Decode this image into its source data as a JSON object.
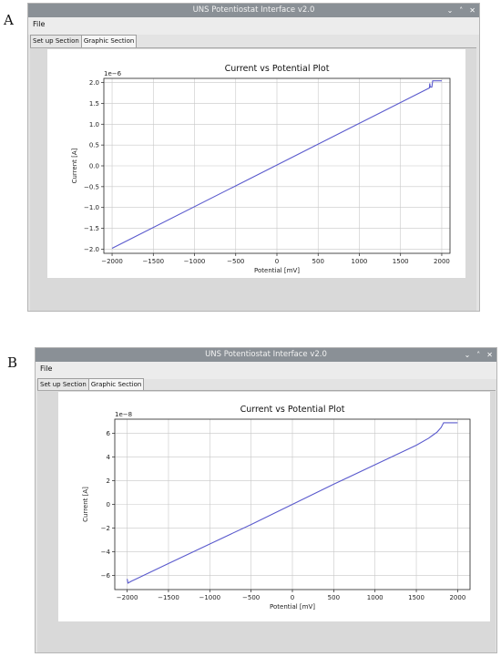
{
  "labels": {
    "a": "A",
    "b": "B"
  },
  "windows": [
    {
      "id": "a",
      "title": "UNS Potentiostat Interface v2.0",
      "controls": [
        "⌄",
        "˄",
        "✕"
      ],
      "menu": [
        "File"
      ],
      "tabs": [
        "Set up Section",
        "Graphic Section"
      ],
      "active_tab": 1
    },
    {
      "id": "b",
      "title": "UNS Potentiostat Interface v2.0",
      "controls": [
        "⌄",
        "˄",
        "✕"
      ],
      "menu": [
        "File"
      ],
      "tabs": [
        "Set up Section",
        "Graphic Section"
      ],
      "active_tab": 1
    }
  ],
  "chart_data": [
    {
      "type": "line",
      "title": "Current vs Potential Plot",
      "xlabel": "Potential [mV]",
      "ylabel": "Current [A]",
      "offset_label": "1e−6",
      "xlim": [
        -2100,
        2100
      ],
      "ylim": [
        -2.1,
        2.1
      ],
      "x_ticks": [
        -2000,
        -1500,
        -1000,
        -500,
        0,
        500,
        1000,
        1500,
        2000
      ],
      "y_ticks": [
        -2.0,
        -1.5,
        -1.0,
        -0.5,
        0.0,
        0.5,
        1.0,
        1.5,
        2.0
      ],
      "x_tick_labels": [
        "−2000",
        "−1500",
        "−1000",
        "−500",
        "0",
        "500",
        "1000",
        "1500",
        "2000"
      ],
      "y_tick_labels": [
        "−2.0",
        "−1.5",
        "−1.0",
        "−0.5",
        "0.0",
        "0.5",
        "1.0",
        "1.5",
        "2.0"
      ],
      "grid": true,
      "line_color": "#5a5acd",
      "series": [
        {
          "x": [
            -2000,
            1850,
            1855,
            1860,
            1870,
            1880,
            1890,
            1900,
            1920,
            1940,
            1960,
            1980,
            2000
          ],
          "y": [
            -1.98,
            1.87,
            1.98,
            1.89,
            1.89,
            1.89,
            2.04,
            2.04,
            2.04,
            2.04,
            2.04,
            2.04,
            2.04
          ]
        }
      ]
    },
    {
      "type": "line",
      "title": "Current vs Potential Plot",
      "xlabel": "Potential [mV]",
      "ylabel": "Current [A]",
      "offset_label": "1e−8",
      "xlim": [
        -2150,
        2150
      ],
      "ylim": [
        -7.2,
        7.2
      ],
      "x_ticks": [
        -2000,
        -1500,
        -1000,
        -500,
        0,
        500,
        1000,
        1500,
        2000
      ],
      "y_ticks": [
        -6,
        -4,
        -2,
        0,
        2,
        4,
        6
      ],
      "x_tick_labels": [
        "−2000",
        "−1500",
        "−1000",
        "−500",
        "0",
        "500",
        "1000",
        "1500",
        "2000"
      ],
      "y_tick_labels": [
        "−6",
        "−4",
        "−2",
        "0",
        "2",
        "4",
        "6"
      ],
      "grid": true,
      "line_color": "#5a5acd",
      "series": [
        {
          "x": [
            -2000,
            -1990,
            -1950,
            -1500,
            -1000,
            -500,
            0,
            500,
            1000,
            1500,
            1650,
            1700,
            1750,
            1800,
            1830,
            1850,
            1900,
            2000
          ],
          "y": [
            -6.3,
            -6.65,
            -6.5,
            -5.0,
            -3.35,
            -1.7,
            0.0,
            1.7,
            3.35,
            5.0,
            5.6,
            5.85,
            6.1,
            6.5,
            6.9,
            6.9,
            6.9,
            6.9
          ]
        }
      ]
    }
  ]
}
